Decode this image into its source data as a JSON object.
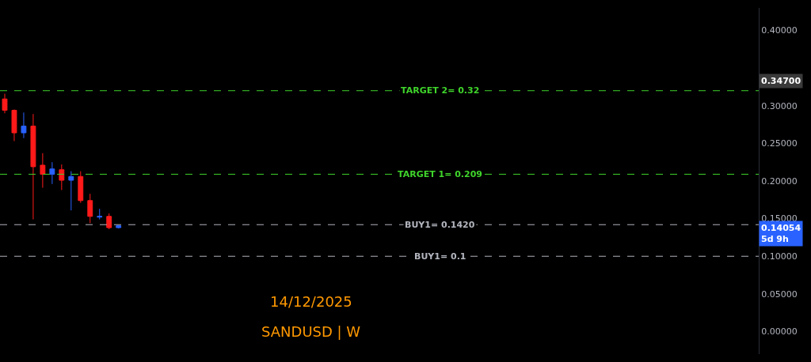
{
  "chart_data": {
    "type": "candlestick",
    "categories": [
      null,
      null,
      null,
      null,
      null,
      null,
      null,
      null,
      null,
      null,
      null,
      null,
      null,
      null,
      null,
      null,
      null,
      null,
      null,
      null,
      null,
      null,
      null,
      null,
      null,
      null,
      null,
      null,
      null,
      null,
      null,
      null,
      null,
      null,
      null,
      null,
      null,
      null,
      null,
      null,
      null,
      null,
      null,
      null,
      null,
      null,
      null,
      null,
      null,
      null,
      null,
      null,
      null,
      null,
      null,
      null,
      null,
      null,
      null,
      null,
      null,
      null,
      null,
      null,
      null,
      null,
      null,
      null,
      null,
      null,
      null,
      null,
      null,
      null,
      null,
      null,
      null,
      null,
      null,
      null
    ],
    "ohlc": [
      [
        0.309,
        0.316,
        0.29,
        0.294
      ],
      [
        0.294,
        0.295,
        0.253,
        0.264
      ],
      [
        0.264,
        0.291,
        0.257,
        0.273
      ],
      [
        0.273,
        0.289,
        0.149,
        0.219
      ],
      [
        0.221,
        0.237,
        0.191,
        0.209
      ],
      [
        0.209,
        0.225,
        0.196,
        0.216
      ],
      [
        0.215,
        0.222,
        0.188,
        0.201
      ],
      [
        0.201,
        0.213,
        0.161,
        0.206
      ],
      [
        0.206,
        0.213,
        0.171,
        0.174
      ],
      [
        0.174,
        0.183,
        0.144,
        0.153
      ],
      [
        0.152,
        0.163,
        0.149,
        0.153
      ],
      [
        0.153,
        0.157,
        0.136,
        0.138
      ],
      [
        0.138,
        0.141,
        0.137,
        0.1405
      ],
      null,
      null,
      null,
      null,
      null,
      null,
      null,
      null,
      null,
      null,
      null,
      null,
      null,
      null,
      null,
      null,
      null,
      null,
      null,
      null,
      null,
      null,
      null,
      null,
      null,
      null,
      null,
      null,
      null,
      null,
      null,
      null,
      null,
      null,
      null,
      null,
      null,
      null,
      null,
      null,
      null,
      null,
      null,
      null,
      null,
      null,
      null,
      null,
      null,
      null,
      null,
      null,
      null,
      null,
      null,
      null,
      null,
      null,
      null,
      null,
      null,
      null,
      null,
      null,
      null,
      null,
      null
    ],
    "colors": [
      "#ff1a1a",
      "#ff1a1a",
      "#2962ff",
      "#ff1a1a",
      "#ff1a1a",
      "#2962ff",
      "#ff1a1a",
      "#2962ff",
      "#ff1a1a",
      "#ff1a1a",
      "#2962ff",
      "#ff1a1a",
      "#2962ff",
      null,
      null,
      null,
      null,
      null,
      null,
      null,
      null,
      null,
      null,
      null,
      null,
      null,
      null,
      null,
      null,
      null,
      null,
      null,
      null,
      null,
      null,
      null,
      null,
      null,
      null,
      null,
      null,
      null,
      null,
      null,
      null,
      null,
      null,
      null,
      null,
      null,
      null,
      null,
      null,
      null,
      null,
      null,
      null,
      null,
      null,
      null,
      null,
      null,
      null,
      null,
      null,
      null,
      null,
      null,
      null,
      null,
      null,
      null,
      null,
      null,
      null,
      null,
      null,
      null,
      null,
      null
    ],
    "ylim": [
      -0.03,
      0.43
    ],
    "yticks": [
      {
        "value": 0,
        "label": "0.00000"
      },
      {
        "value": 0.05,
        "label": "0.05000"
      },
      {
        "value": 0.1,
        "label": "0.10000"
      },
      {
        "value": 0.15,
        "label": "0.15000"
      },
      {
        "value": 0.2,
        "label": "0.20000"
      },
      {
        "value": 0.25,
        "label": "0.25000"
      },
      {
        "value": 0.3,
        "label": "0.30000"
      },
      {
        "value": 0.4,
        "label": "0.40000"
      }
    ],
    "tick_labels": "y",
    "grid": false,
    "ref_lines": [
      {
        "axis": "y",
        "value": 0.32,
        "label": "TARGET 2= 0.32",
        "color": "#3fd42b",
        "line_style": "dashed"
      },
      {
        "axis": "y",
        "value": 0.209,
        "label": "TARGET 1= 0.209",
        "color": "#3fd42b",
        "line_style": "dashed"
      },
      {
        "axis": "y",
        "value": 0.142,
        "label": "BUY1= 0.1420",
        "color": "#b2b5be",
        "line_style": "dashed"
      },
      {
        "axis": "y",
        "value": 0.1,
        "label": "BUY1= 0.1",
        "color": "#b2b5be",
        "line_style": "dashed"
      }
    ],
    "annotations": [
      "0.34700",
      "0.14054\n5d 9h",
      "14/12/2025",
      "SANDUSD | W"
    ]
  }
}
